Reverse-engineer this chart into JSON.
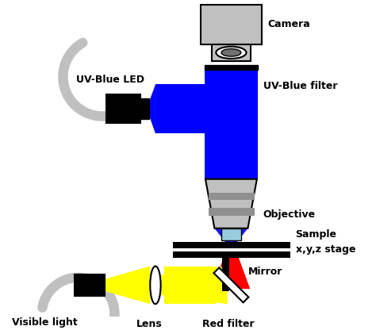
{
  "background_color": "#ffffff",
  "labels": {
    "camera": "Camera",
    "uv_blue_filter": "UV-Blue filter",
    "uv_blue_led": "UV-Blue LED",
    "objective": "Objective",
    "sample": "Sample",
    "xyz_stage": "x,y,z stage",
    "visible_light": "Visible light",
    "lens": "Lens",
    "red_filter": "Red filter",
    "mirror": "Mirror"
  },
  "colors": {
    "blue": "#0000ff",
    "red": "#ff0000",
    "yellow": "#ffff00",
    "gray": "#909090",
    "gray_light": "#c0c0c0",
    "gray_dark": "#707070",
    "black": "#000000",
    "white": "#ffffff",
    "cyan_light": "#99ccdd",
    "dark_gray": "#444444"
  },
  "figsize": [
    4.74,
    4.16
  ],
  "dpi": 100
}
